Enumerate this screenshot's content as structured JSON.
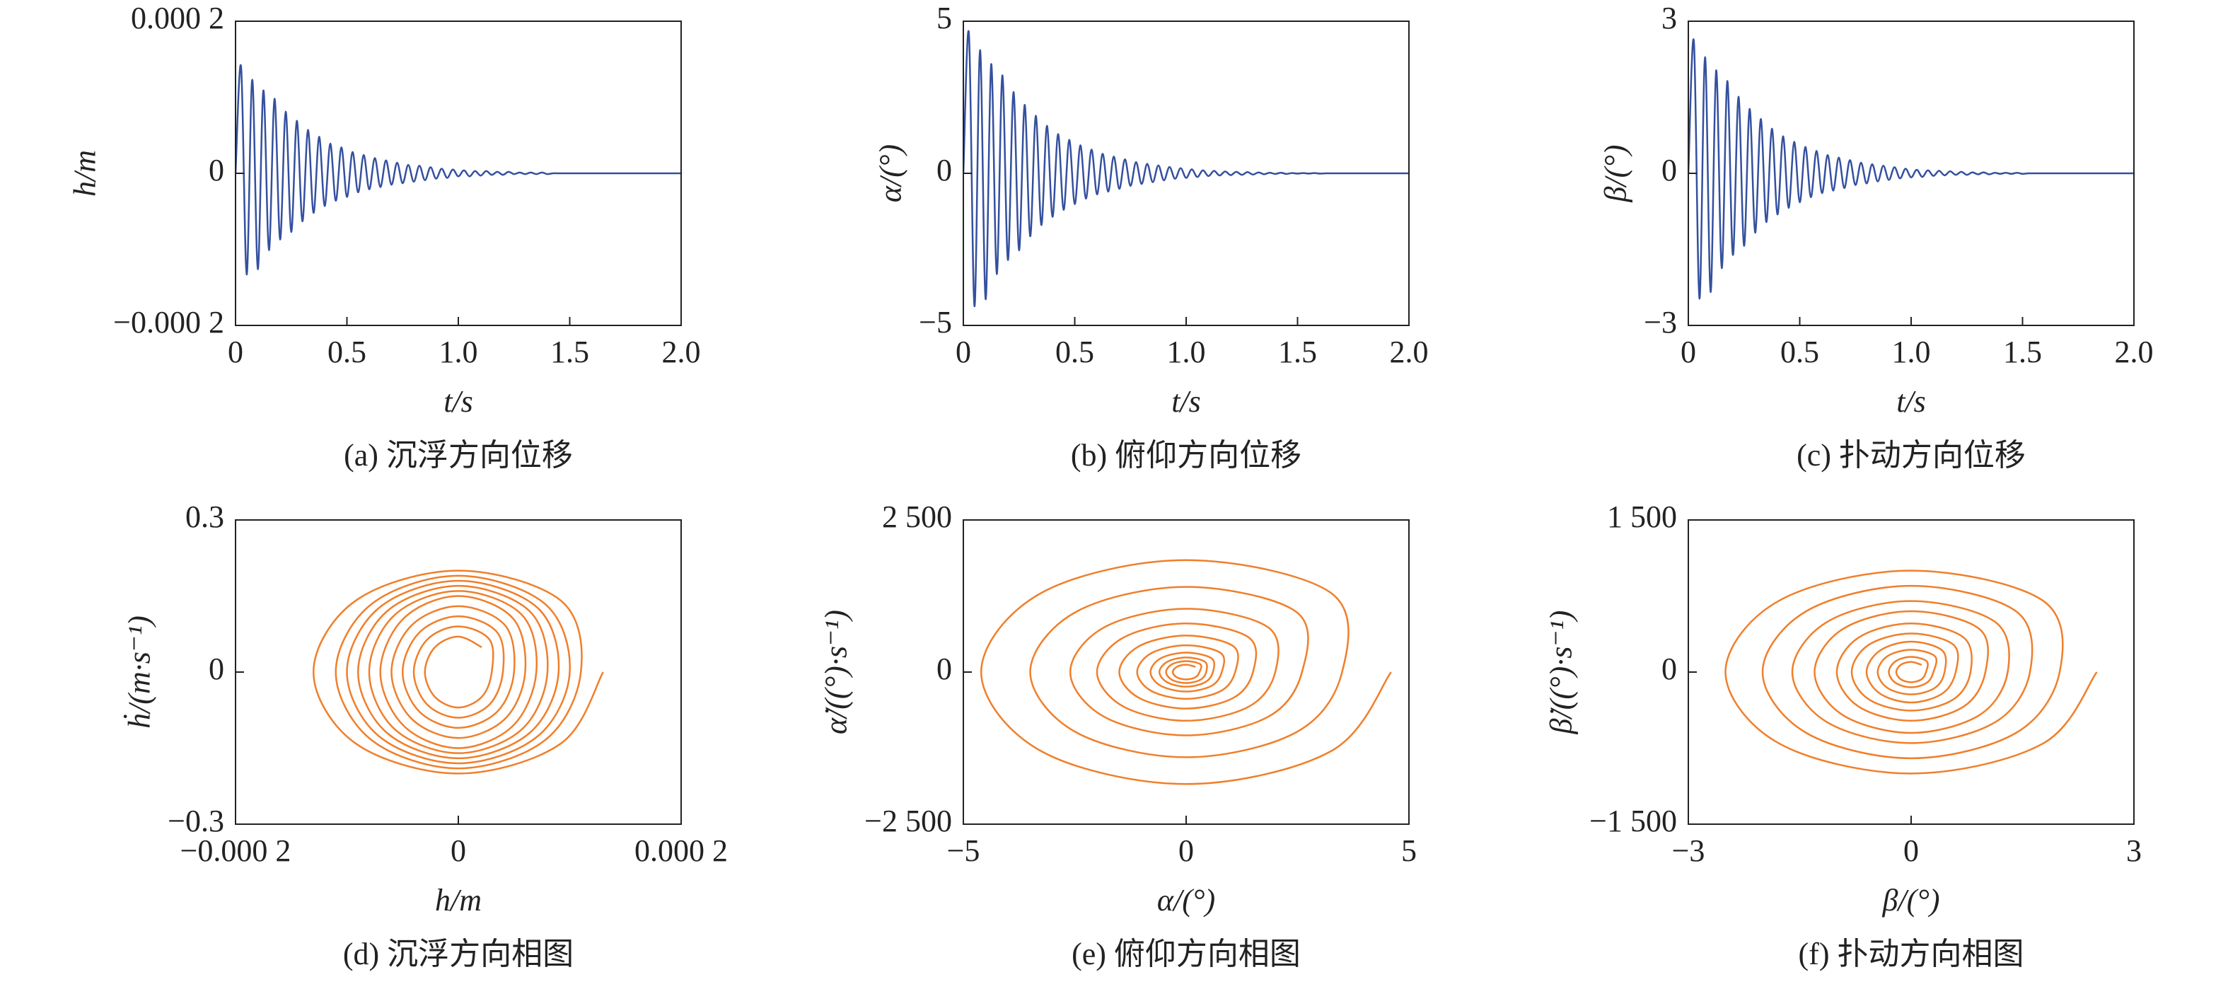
{
  "chart_data": [
    {
      "type": "line",
      "title": "(a) 沉浮方向位移",
      "xlabel": "t/s",
      "ylabel": "h/m",
      "color": "#34509f",
      "x": [
        0,
        0.025,
        0.05,
        0.075,
        0.1,
        0.125,
        0.15,
        0.175,
        0.2,
        0.225,
        0.25,
        0.275,
        0.3,
        0.325,
        0.35,
        0.375,
        0.4,
        0.425,
        0.45,
        0.475,
        0.5,
        0.525,
        0.55,
        0.575,
        0.6,
        0.625,
        0.65,
        0.675,
        0.7,
        0.725,
        0.75,
        0.775,
        0.8,
        0.825,
        0.85,
        0.875,
        0.9,
        0.925,
        0.95,
        0.975,
        1,
        1.025,
        1.05,
        1.075,
        1.1,
        1.125,
        1.15,
        1.175,
        1.2,
        1.225,
        1.25,
        1.275,
        1.3,
        1.325,
        1.35,
        1.375,
        1.4,
        1.425,
        1.45,
        1.475,
        1.5,
        1.525,
        1.55,
        1.575,
        1.6,
        1.625,
        1.65,
        1.675,
        1.7,
        1.725,
        1.75,
        1.775,
        1.8,
        1.825,
        1.85,
        1.875,
        1.9,
        1.925,
        1.95,
        1.975,
        2
      ],
      "values": [
        0,
        0.00014,
        -0.000133,
        0.000123,
        -0.000126,
        0.000109,
        -0.000101,
        9.8e-05,
        -8.7e-05,
        8.1e-05,
        -7.7e-05,
        6.9e-05,
        -6.3e-05,
        5.7e-05,
        -5.2e-05,
        4.8e-05,
        -4.3e-05,
        3.9e-05,
        -3.6e-05,
        3.4e-05,
        -3.1e-05,
        2.8e-05,
        -2.5e-05,
        2.4e-05,
        -2.1e-05,
        2e-05,
        -1.8e-05,
        1.7e-05,
        -1.5e-05,
        1.4e-05,
        -1.3e-05,
        1.1e-05,
        -1.1e-05,
        1e-05,
        -9e-06,
        8e-06,
        -7e-06,
        6e-06,
        -6e-06,
        5e-06,
        -4e-06,
        4e-06,
        -4e-06,
        3e-06,
        -3e-06,
        3e-06,
        -2e-06,
        2e-06,
        -2e-06,
        2e-06,
        -1e-06,
        1e-06,
        -1e-06,
        1e-06,
        -1e-06,
        1e-06,
        -1e-06,
        0,
        0,
        0,
        0,
        0,
        0,
        0,
        0,
        0,
        0,
        0,
        0,
        0,
        0,
        0,
        0,
        0,
        0,
        0,
        0,
        0,
        0,
        0,
        0
      ],
      "xlim": [
        0,
        2
      ],
      "ylim": [
        -0.0002,
        0.0002
      ],
      "xticks": [
        0,
        0.5,
        {
          "value": 1,
          "label": "1.0"
        },
        1.5,
        {
          "value": 2,
          "label": "2.0"
        }
      ],
      "yticks": [
        {
          "value": -0.0002,
          "label": "−0.000 2"
        },
        0,
        {
          "value": 0.0002,
          "label": "0.000 2"
        }
      ]
    },
    {
      "type": "line",
      "title": "(b) 俯仰方向位移",
      "xlabel": "t/s",
      "ylabel": "α/(°)",
      "color": "#34509f",
      "x": [
        0,
        0.025,
        0.05,
        0.075,
        0.1,
        0.125,
        0.15,
        0.175,
        0.2,
        0.225,
        0.25,
        0.275,
        0.3,
        0.325,
        0.35,
        0.375,
        0.4,
        0.425,
        0.45,
        0.475,
        0.5,
        0.525,
        0.55,
        0.575,
        0.6,
        0.625,
        0.65,
        0.675,
        0.7,
        0.725,
        0.75,
        0.775,
        0.8,
        0.825,
        0.85,
        0.875,
        0.9,
        0.925,
        0.95,
        0.975,
        1,
        1.025,
        1.05,
        1.075,
        1.1,
        1.125,
        1.15,
        1.175,
        1.2,
        1.225,
        1.25,
        1.275,
        1.3,
        1.325,
        1.35,
        1.375,
        1.4,
        1.425,
        1.45,
        1.475,
        1.5,
        1.525,
        1.55,
        1.575,
        1.6,
        1.625,
        1.65,
        1.675,
        1.7,
        1.725,
        1.75,
        1.775,
        1.8,
        1.825,
        1.85,
        1.875,
        1.9,
        1.925,
        1.95,
        1.975,
        2
      ],
      "values": [
        0,
        4.6,
        -4.37,
        4.05,
        -4.14,
        3.59,
        -3.31,
        3.22,
        -2.85,
        2.67,
        -2.53,
        2.25,
        -2.07,
        1.89,
        -1.7,
        1.56,
        -1.43,
        1.29,
        -1.2,
        1.1,
        -1.01,
        0.92,
        -0.83,
        0.78,
        -0.69,
        0.64,
        -0.6,
        0.55,
        -0.51,
        0.46,
        -0.41,
        0.37,
        -0.35,
        0.31,
        -0.29,
        0.26,
        -0.23,
        0.21,
        -0.18,
        0.17,
        -0.15,
        0.13,
        -0.12,
        0.1,
        -0.09,
        0.08,
        -0.07,
        0.06,
        -0.06,
        0.05,
        -0.05,
        0.04,
        -0.04,
        0.03,
        -0.03,
        0.02,
        -0.02,
        0.02,
        -0.02,
        0.01,
        -0.01,
        0.01,
        -0.01,
        0.01,
        -0.01,
        0,
        0,
        0,
        0,
        0,
        0,
        0,
        0,
        0,
        0,
        0,
        0,
        0,
        0,
        0,
        0
      ],
      "xlim": [
        0,
        2
      ],
      "ylim": [
        -5,
        5
      ],
      "xticks": [
        0,
        0.5,
        {
          "value": 1,
          "label": "1.0"
        },
        1.5,
        {
          "value": 2,
          "label": "2.0"
        }
      ],
      "yticks": [
        {
          "value": -5,
          "label": "−5"
        },
        0,
        5
      ]
    },
    {
      "type": "line",
      "title": "(c) 扑动方向位移",
      "xlabel": "t/s",
      "ylabel": "β/(°)",
      "color": "#34509f",
      "x": [
        0,
        0.025,
        0.05,
        0.075,
        0.1,
        0.125,
        0.15,
        0.175,
        0.2,
        0.225,
        0.25,
        0.275,
        0.3,
        0.325,
        0.35,
        0.375,
        0.4,
        0.425,
        0.45,
        0.475,
        0.5,
        0.525,
        0.55,
        0.575,
        0.6,
        0.625,
        0.65,
        0.675,
        0.7,
        0.725,
        0.75,
        0.775,
        0.8,
        0.825,
        0.85,
        0.875,
        0.9,
        0.925,
        0.95,
        0.975,
        1,
        1.025,
        1.05,
        1.075,
        1.1,
        1.125,
        1.15,
        1.175,
        1.2,
        1.225,
        1.25,
        1.275,
        1.3,
        1.325,
        1.35,
        1.375,
        1.4,
        1.425,
        1.45,
        1.475,
        1.5,
        1.525,
        1.55,
        1.575,
        1.6,
        1.625,
        1.65,
        1.675,
        1.7,
        1.725,
        1.75,
        1.775,
        1.8,
        1.825,
        1.85,
        1.875,
        1.9,
        1.925,
        1.95,
        1.975,
        2
      ],
      "values": [
        0,
        2.6,
        -2.47,
        2.29,
        -2.34,
        2.03,
        -1.87,
        1.82,
        -1.61,
        1.51,
        -1.43,
        1.27,
        -1.17,
        1.07,
        -0.96,
        0.88,
        -0.81,
        0.73,
        -0.68,
        0.62,
        -0.57,
        0.52,
        -0.47,
        0.44,
        -0.39,
        0.36,
        -0.34,
        0.31,
        -0.29,
        0.26,
        -0.23,
        0.21,
        -0.2,
        0.18,
        -0.16,
        0.15,
        -0.13,
        0.12,
        -0.1,
        0.09,
        -0.08,
        0.07,
        -0.07,
        0.06,
        -0.05,
        0.05,
        -0.04,
        0.04,
        -0.03,
        0.03,
        -0.03,
        0.02,
        -0.02,
        0.02,
        -0.02,
        0.01,
        -0.01,
        0.01,
        -0.01,
        0.01,
        -0.01,
        0,
        0,
        0,
        0,
        0,
        0,
        0,
        0,
        0,
        0,
        0,
        0,
        0,
        0,
        0,
        0,
        0,
        0,
        0,
        0
      ],
      "xlim": [
        0,
        2
      ],
      "ylim": [
        -3,
        3
      ],
      "xticks": [
        0,
        0.5,
        {
          "value": 1,
          "label": "1.0"
        },
        1.5,
        {
          "value": 2,
          "label": "2.0"
        }
      ],
      "yticks": [
        {
          "value": -3,
          "label": "−3"
        },
        0,
        3
      ]
    },
    {
      "type": "line",
      "title": "(d) 沉浮方向相图",
      "xlabel": "h/m",
      "ylabel": "ḣ/(m·s⁻¹)",
      "color": "#f07f2a",
      "x": [
        0.00013,
        9.2e-05,
        0,
        -9.2e-05,
        -0.00013,
        -9.2e-05,
        0,
        9.2e-05,
        0.00011,
        7.8e-05,
        0,
        -7.8e-05,
        -0.00011,
        -7.8e-05,
        0,
        7.8e-05,
        0.0001,
        7.1e-05,
        0,
        -7.1e-05,
        -0.0001,
        -7.1e-05,
        0,
        7.1e-05,
        9e-05,
        6.4e-05,
        0,
        -6.4e-05,
        -9e-05,
        -6.4e-05,
        0,
        6.4e-05,
        8e-05,
        5.7e-05,
        0,
        -5.7e-05,
        -8e-05,
        -5.7e-05,
        0,
        5.7e-05,
        7e-05,
        4.9e-05,
        0,
        -4.9e-05,
        -7e-05,
        -4.9e-05,
        0,
        4.9e-05,
        6e-05,
        4.2e-05,
        0,
        -4.2e-05,
        -6e-05,
        -4.2e-05,
        0,
        4.2e-05,
        5e-05,
        3.5e-05,
        0,
        -3.5e-05,
        -5e-05,
        -3.5e-05,
        0,
        3.5e-05,
        4e-05,
        2.8e-05,
        0,
        -2.8e-05,
        -4e-05,
        -2.8e-05,
        0,
        2.8e-05,
        3e-05,
        2.1e-05,
        0,
        -2.1e-05,
        -3e-05,
        -2.1e-05,
        0,
        2.1e-05
      ],
      "values": [
        0,
        -0.141,
        -0.2,
        -0.141,
        0,
        0.141,
        0.2,
        0.141,
        0,
        -0.134,
        -0.19,
        -0.134,
        0,
        0.134,
        0.19,
        0.134,
        0,
        -0.127,
        -0.18,
        -0.127,
        0,
        0.127,
        0.18,
        0.127,
        0,
        -0.12,
        -0.17,
        -0.12,
        0,
        0.12,
        0.17,
        0.12,
        0,
        -0.113,
        -0.16,
        -0.113,
        0,
        0.113,
        0.16,
        0.113,
        0,
        -0.106,
        -0.15,
        -0.106,
        0,
        0.106,
        0.15,
        0.106,
        0,
        -0.092,
        -0.13,
        -0.092,
        0,
        0.092,
        0.13,
        0.092,
        0,
        -0.078,
        -0.11,
        -0.078,
        0,
        0.078,
        0.11,
        0.078,
        0,
        -0.064,
        -0.09,
        -0.064,
        0,
        0.064,
        0.09,
        0.064,
        0,
        -0.049,
        -0.07,
        -0.049,
        0,
        0.049,
        0.07,
        0.049
      ],
      "xlim": [
        -0.0002,
        0.0002
      ],
      "ylim": [
        -0.3,
        0.3
      ],
      "xticks": [
        {
          "value": -0.0002,
          "label": "−0.000 2"
        },
        0,
        {
          "value": 0.0002,
          "label": "0.000 2"
        }
      ],
      "yticks": [
        {
          "value": -0.3,
          "label": "−0.3"
        },
        0,
        0.3
      ]
    },
    {
      "type": "line",
      "title": "(e) 俯仰方向相图",
      "xlabel": "α/(°)",
      "ylabel": "α̇/((°)·s⁻¹)",
      "color": "#f07f2a",
      "x": [
        4.6,
        3.25,
        0,
        -3.25,
        -4.6,
        -3.25,
        0,
        3.25,
        3.5,
        2.47,
        0,
        -2.47,
        -3.5,
        -2.47,
        0,
        2.47,
        2.6,
        1.84,
        0,
        -1.84,
        -2.6,
        -1.84,
        0,
        1.84,
        2,
        1.41,
        0,
        -1.41,
        -2,
        -1.41,
        0,
        1.41,
        1.5,
        1.06,
        0,
        -1.06,
        -1.5,
        -1.06,
        0,
        1.06,
        1.1,
        0.78,
        0,
        -0.78,
        -1.1,
        -0.78,
        0,
        0.78,
        0.8,
        0.57,
        0,
        -0.57,
        -0.8,
        -0.57,
        0,
        0.57,
        0.6,
        0.42,
        0,
        -0.42,
        -0.6,
        -0.42,
        0,
        0.42,
        0.45,
        0.32,
        0,
        -0.32,
        -0.45,
        -0.32,
        0,
        0.32,
        0.3,
        0.21,
        0,
        -0.21,
        -0.3,
        -0.21,
        0,
        0.21
      ],
      "values": [
        0,
        -1301,
        -1840,
        -1301,
        0,
        1301,
        1840,
        1301,
        0,
        -990,
        -1400,
        -990,
        0,
        990,
        1400,
        990,
        0,
        -735,
        -1040,
        -735,
        0,
        735,
        1040,
        735,
        0,
        -566,
        -800,
        -566,
        0,
        566,
        800,
        566,
        0,
        -424,
        -600,
        -424,
        0,
        424,
        600,
        424,
        0,
        -311,
        -440,
        -311,
        0,
        311,
        440,
        311,
        0,
        -226,
        -320,
        -226,
        0,
        226,
        320,
        226,
        0,
        -170,
        -240,
        -170,
        0,
        170,
        240,
        170,
        0,
        -127,
        -180,
        -127,
        0,
        127,
        180,
        127,
        0,
        -85,
        -120,
        -85,
        0,
        85,
        120,
        85
      ],
      "xlim": [
        -5,
        5
      ],
      "ylim": [
        -2500,
        2500
      ],
      "xticks": [
        {
          "value": -5,
          "label": "−5"
        },
        0,
        5
      ],
      "yticks": [
        {
          "value": -2500,
          "label": "−2 500"
        },
        0,
        {
          "value": 2500,
          "label": "2 500"
        }
      ]
    },
    {
      "type": "line",
      "title": "(f) 扑动方向相图",
      "xlabel": "β/(°)",
      "ylabel": "β̇/((°)·s⁻¹)",
      "color": "#f07f2a",
      "x": [
        2.5,
        1.77,
        0,
        -1.77,
        -2.5,
        -1.77,
        0,
        1.77,
        2,
        1.41,
        0,
        -1.41,
        -2,
        -1.41,
        0,
        1.41,
        1.6,
        1.13,
        0,
        -1.13,
        -1.6,
        -1.13,
        0,
        1.13,
        1.3,
        0.92,
        0,
        -0.92,
        -1.3,
        -0.92,
        0,
        0.92,
        1,
        0.71,
        0,
        -0.71,
        -1,
        -0.71,
        0,
        0.71,
        0.8,
        0.57,
        0,
        -0.57,
        -0.8,
        -0.57,
        0,
        0.57,
        0.6,
        0.42,
        0,
        -0.42,
        -0.6,
        -0.42,
        0,
        0.42,
        0.45,
        0.32,
        0,
        -0.32,
        -0.45,
        -0.32,
        0,
        0.32,
        0.3,
        0.21,
        0,
        -0.21,
        -0.3,
        -0.21,
        0,
        0.21,
        0.2,
        0.14,
        0,
        -0.14,
        -0.2,
        -0.14,
        0,
        0.14
      ],
      "values": [
        0,
        -707,
        -1000,
        -707,
        0,
        707,
        1000,
        707,
        0,
        -601,
        -850,
        -601,
        0,
        601,
        850,
        601,
        0,
        -495,
        -700,
        -495,
        0,
        495,
        700,
        495,
        0,
        -424,
        -600,
        -424,
        0,
        424,
        600,
        424,
        0,
        -339,
        -480,
        -339,
        0,
        339,
        480,
        339,
        0,
        -269,
        -380,
        -269,
        0,
        269,
        380,
        269,
        0,
        -212,
        -300,
        -212,
        0,
        212,
        300,
        212,
        0,
        -156,
        -220,
        -156,
        0,
        156,
        220,
        156,
        0,
        -106,
        -150,
        -106,
        0,
        106,
        150,
        106,
        0,
        -71,
        -100,
        -71,
        0,
        71,
        100,
        71
      ],
      "xlim": [
        -3,
        3
      ],
      "ylim": [
        -1500,
        1500
      ],
      "xticks": [
        {
          "value": -3,
          "label": "−3"
        },
        0,
        3
      ],
      "yticks": [
        {
          "value": -1500,
          "label": "−1 500"
        },
        0,
        {
          "value": 1500,
          "label": "1 500"
        }
      ]
    }
  ]
}
